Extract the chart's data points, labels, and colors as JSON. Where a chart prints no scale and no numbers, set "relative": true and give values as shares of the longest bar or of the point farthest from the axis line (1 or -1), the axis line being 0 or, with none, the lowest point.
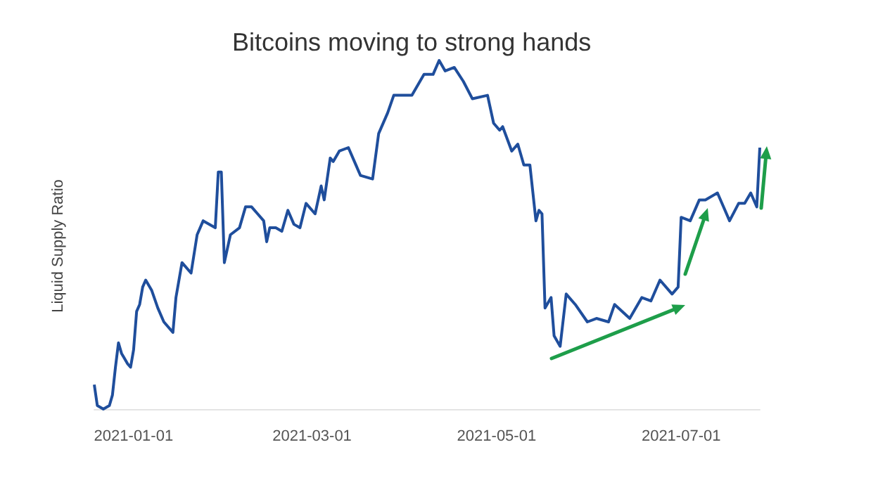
{
  "chart_data": {
    "type": "line",
    "title": "Bitcoins moving to strong hands",
    "ylabel": "Liquid Supply Ratio",
    "relative": true,
    "tick_labels": "x",
    "grid": false,
    "marker": "none",
    "line_style": "solid",
    "x": [
      "2020-12-19",
      "2020-12-20",
      "2020-12-22",
      "2020-12-24",
      "2020-12-25",
      "2020-12-26",
      "2020-12-27",
      "2020-12-28",
      "2020-12-30",
      "2020-12-31",
      "2021-01-01",
      "2021-01-02",
      "2021-01-03",
      "2021-01-04",
      "2021-01-05",
      "2021-01-07",
      "2021-01-09",
      "2021-01-11",
      "2021-01-14",
      "2021-01-15",
      "2021-01-17",
      "2021-01-20",
      "2021-01-22",
      "2021-01-24",
      "2021-01-28",
      "2021-01-29",
      "2021-01-30",
      "2021-01-31",
      "2021-02-02",
      "2021-02-05",
      "2021-02-07",
      "2021-02-09",
      "2021-02-11",
      "2021-02-13",
      "2021-02-14",
      "2021-02-15",
      "2021-02-17",
      "2021-02-19",
      "2021-02-21",
      "2021-02-23",
      "2021-02-25",
      "2021-02-27",
      "2021-03-02",
      "2021-03-04",
      "2021-03-05",
      "2021-03-07",
      "2021-03-08",
      "2021-03-10",
      "2021-03-13",
      "2021-03-15",
      "2021-03-17",
      "2021-03-21",
      "2021-03-23",
      "2021-03-26",
      "2021-03-28",
      "2021-03-29",
      "2021-04-03",
      "2021-04-07",
      "2021-04-10",
      "2021-04-12",
      "2021-04-14",
      "2021-04-17",
      "2021-04-20",
      "2021-04-23",
      "2021-04-28",
      "2021-04-30",
      "2021-05-02",
      "2021-05-03",
      "2021-05-06",
      "2021-05-08",
      "2021-05-10",
      "2021-05-12",
      "2021-05-14",
      "2021-05-15",
      "2021-05-16",
      "2021-05-17",
      "2021-05-19",
      "2021-05-20",
      "2021-05-22",
      "2021-05-24",
      "2021-05-27",
      "2021-05-31",
      "2021-06-03",
      "2021-06-07",
      "2021-06-09",
      "2021-06-14",
      "2021-06-18",
      "2021-06-21",
      "2021-06-24",
      "2021-06-28",
      "2021-06-30",
      "2021-07-01",
      "2021-07-04",
      "2021-07-07",
      "2021-07-09",
      "2021-07-13",
      "2021-07-15",
      "2021-07-17",
      "2021-07-20",
      "2021-07-22",
      "2021-07-24",
      "2021-07-26",
      "2021-07-27"
    ],
    "series": [
      {
        "color": "#1f4e9c",
        "values": [
          0.07,
          0.01,
          0,
          0.01,
          0.04,
          0.12,
          0.19,
          0.16,
          0.13,
          0.12,
          0.17,
          0.28,
          0.3,
          0.35,
          0.37,
          0.34,
          0.29,
          0.25,
          0.22,
          0.32,
          0.42,
          0.39,
          0.5,
          0.54,
          0.52,
          0.68,
          0.68,
          0.42,
          0.5,
          0.52,
          0.58,
          0.58,
          0.56,
          0.54,
          0.48,
          0.52,
          0.52,
          0.51,
          0.57,
          0.53,
          0.52,
          0.59,
          0.56,
          0.64,
          0.6,
          0.72,
          0.71,
          0.74,
          0.75,
          0.71,
          0.67,
          0.66,
          0.79,
          0.85,
          0.9,
          0.9,
          0.9,
          0.96,
          0.96,
          1,
          0.97,
          0.98,
          0.94,
          0.89,
          0.9,
          0.82,
          0.8,
          0.81,
          0.74,
          0.76,
          0.7,
          0.7,
          0.54,
          0.57,
          0.56,
          0.29,
          0.32,
          0.21,
          0.18,
          0.33,
          0.3,
          0.25,
          0.26,
          0.25,
          0.3,
          0.26,
          0.32,
          0.31,
          0.37,
          0.33,
          0.35,
          0.55,
          0.54,
          0.6,
          0.6,
          0.62,
          0.58,
          0.54,
          0.59,
          0.59,
          0.62,
          0.58,
          0.75
        ]
      }
    ],
    "xlim": [
      "2020-12-19",
      "2021-07-27"
    ],
    "xticks": [
      "2021-01-01",
      "2021-03-01",
      "2021-05-01",
      "2021-07-01"
    ]
  }
}
